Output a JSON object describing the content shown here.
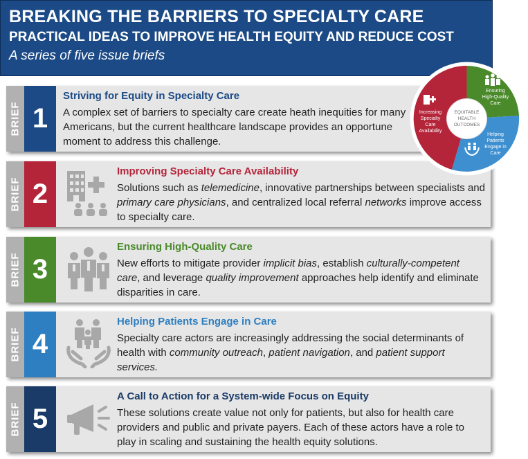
{
  "header": {
    "title": "BREAKING THE BARRIERS TO SPECIALTY CARE",
    "subtitle": "PRACTICAL IDEAS TO IMPROVE HEALTH EQUITY AND REDUCE COST",
    "tagline": "A series of five issue briefs"
  },
  "brief_label": "BRIEF",
  "briefs": [
    {
      "number": "1",
      "color": "#1b4a86",
      "title_color": "#1b4a86",
      "title": "Striving for Equity in Specialty Care",
      "desc": "A complex set of barriers to specialty care create heath inequities for many Americans, but the current healthcare landscape provides an opportune moment to address this challenge."
    },
    {
      "number": "2",
      "color": "#b5253a",
      "title_color": "#b5253a",
      "title": "Improving Specialty Care Availability",
      "desc_parts": [
        "Solutions such as ",
        "telemedicine",
        ", innovative partnerships between specialists and ",
        "primary care physicians",
        ", and centralized local referral ",
        "networks",
        " improve access to specialty care."
      ],
      "icon": "hospital-icon"
    },
    {
      "number": "3",
      "color": "#4a8a2b",
      "title_color": "#4a8a2b",
      "title": "Ensuring High-Quality Care",
      "desc_parts": [
        "New efforts to mitigate provider ",
        "implicit bias",
        ", establish ",
        "culturally-competent care",
        ", and leverage ",
        "quality improvement",
        " approaches help identify and eliminate disparities in care."
      ],
      "icon": "doctors-icon"
    },
    {
      "number": "4",
      "color": "#2e7fc1",
      "title_color": "#2e7fc1",
      "title": "Helping Patients Engage in Care",
      "desc_parts": [
        "Specialty care actors are increasingly addressing the social determinants of health with ",
        "community outreach",
        ", ",
        "patient navigation",
        ", and ",
        "patient support services.",
        ""
      ],
      "icon": "family-hands-icon"
    },
    {
      "number": "5",
      "color": "#1a3b67",
      "title_color": "#1a3b67",
      "title": "A Call to Action for a System-wide Focus on Equity",
      "desc": "These solutions create value not only for patients, but also for health care providers and public and private payers. Each of these actors have a role to play in scaling and sustaining the health equity solutions.",
      "icon": "megaphone-icon"
    }
  ],
  "wheel": {
    "center": "EQUITABLE HEALTH OUTCOMES",
    "center_line1": "EQUITABLE",
    "center_line2": "HEALTH",
    "center_line3": "OUTCOMES",
    "seg_red": [
      "Increasing",
      "Specialty",
      "Care",
      "Availability"
    ],
    "seg_green": [
      "Ensuring",
      "High-Quality",
      "Care"
    ],
    "seg_blue": [
      "Helping",
      "Patients",
      "Engage in",
      "Care"
    ],
    "colors": {
      "red": "#b5253a",
      "green": "#4a8a2b",
      "blue": "#3d8fd0"
    }
  }
}
